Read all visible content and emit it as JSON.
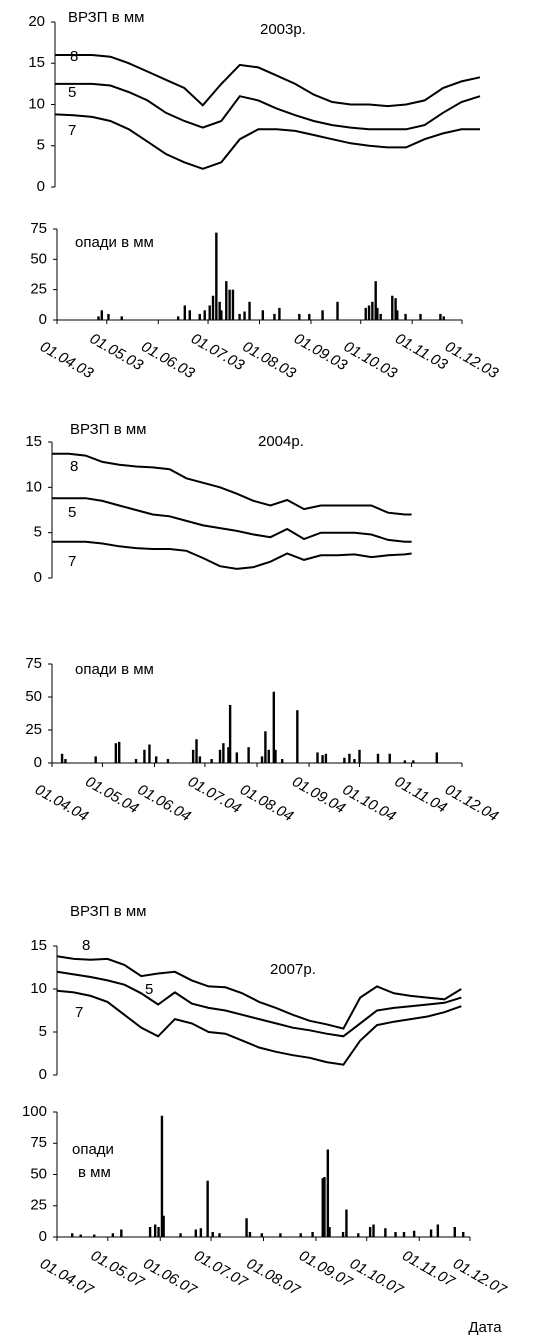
{
  "chart_data": [
    {
      "type": "line",
      "title": "2003р.",
      "ylabel": "ВРЗП в мм",
      "xlim": [
        0,
        230
      ],
      "ylim": [
        0,
        20
      ],
      "yticks": [
        0,
        5,
        10,
        15,
        20
      ],
      "x": [
        0,
        10,
        20,
        30,
        40,
        50,
        60,
        70,
        80,
        90,
        100,
        110,
        120,
        130,
        140,
        150,
        160,
        170,
        180,
        190,
        200,
        210,
        220,
        230
      ],
      "series": [
        {
          "name": "8",
          "color": "#000000",
          "values": [
            16,
            16,
            16,
            15.8,
            15,
            14,
            13,
            12,
            9.9,
            12.5,
            14.8,
            14.5,
            13.5,
            12.5,
            11.2,
            10.3,
            10,
            10,
            9.8,
            10,
            10.5,
            12,
            12.8,
            13.3
          ]
        },
        {
          "name": "5",
          "color": "#000000",
          "values": [
            12.5,
            12.5,
            12.5,
            12.3,
            11.5,
            10.5,
            9,
            8,
            7.2,
            8,
            11,
            10.5,
            9.5,
            8.7,
            8,
            7.5,
            7.2,
            7,
            7,
            7,
            7.5,
            9,
            10.3,
            11
          ]
        },
        {
          "name": "7",
          "color": "#000000",
          "values": [
            8.8,
            8.7,
            8.5,
            8,
            7,
            5.5,
            4,
            3,
            2.2,
            3,
            5.8,
            7,
            7,
            6.8,
            6.3,
            5.8,
            5.3,
            5,
            4.8,
            4.8,
            5.8,
            6.5,
            7,
            7
          ]
        }
      ]
    },
    {
      "type": "bar",
      "title": "опади в мм",
      "color": "#000000",
      "xlim": [
        0,
        244
      ],
      "ylim": [
        0,
        75
      ],
      "yticks": [
        0,
        25,
        50,
        75
      ],
      "xticks": [
        {
          "value": 0,
          "label": "01.04.03"
        },
        {
          "value": 30,
          "label": "01.05.03"
        },
        {
          "value": 61,
          "label": "01.06.03"
        },
        {
          "value": 91,
          "label": "01.07.03"
        },
        {
          "value": 122,
          "label": "01.08.03"
        },
        {
          "value": 153,
          "label": "01.09.03"
        },
        {
          "value": 183,
          "label": "01.10.03"
        },
        {
          "value": 214,
          "label": "01.11.03"
        },
        {
          "value": 244,
          "label": "01.12.03"
        }
      ],
      "x": [
        25,
        27,
        31,
        39,
        73,
        77,
        80,
        86,
        89,
        92,
        94,
        96,
        98,
        99,
        102,
        104,
        106,
        110,
        113,
        116,
        124,
        131,
        134,
        146,
        152,
        160,
        169,
        186,
        188,
        190,
        192,
        193,
        195,
        202,
        204,
        205,
        210,
        219,
        231,
        233
      ],
      "values": [
        3,
        8,
        5,
        3,
        3,
        12,
        8,
        5,
        8,
        12,
        20,
        72,
        15,
        8,
        32,
        25,
        25,
        5,
        7,
        15,
        8,
        5,
        10,
        5,
        5,
        8,
        15,
        10,
        12,
        15,
        32,
        10,
        5,
        20,
        18,
        8,
        5,
        5,
        5,
        3
      ]
    },
    {
      "type": "line",
      "title": "2004р.",
      "ylabel": "ВРЗП в мм",
      "xlim": [
        0,
        244
      ],
      "ylim": [
        0,
        15
      ],
      "yticks": [
        0,
        5,
        10,
        15
      ],
      "x": [
        0,
        10,
        20,
        30,
        40,
        50,
        60,
        70,
        80,
        90,
        100,
        110,
        120,
        130,
        140,
        150,
        160,
        170,
        180,
        190,
        200,
        210,
        214
      ],
      "series": [
        {
          "name": "8",
          "color": "#000000",
          "values": [
            13.7,
            13.7,
            13.5,
            12.8,
            12.5,
            12.3,
            12.2,
            12,
            11,
            10.5,
            10,
            9.3,
            8.5,
            8,
            8.6,
            7.6,
            8,
            8,
            8,
            8,
            7.2,
            7,
            7
          ]
        },
        {
          "name": "5",
          "color": "#000000",
          "values": [
            8.8,
            8.8,
            8.8,
            8.5,
            8,
            7.5,
            7,
            6.8,
            6.3,
            5.8,
            5.5,
            5.2,
            4.8,
            4.5,
            5.4,
            4.3,
            5,
            5,
            5,
            4.8,
            4.2,
            4,
            4
          ]
        },
        {
          "name": "7",
          "color": "#000000",
          "values": [
            4,
            4,
            4,
            3.8,
            3.5,
            3.3,
            3.2,
            3.2,
            3,
            2.2,
            1.3,
            1,
            1.2,
            1.8,
            2.7,
            2,
            2.5,
            2.5,
            2.6,
            2.3,
            2.5,
            2.6,
            2.7
          ]
        }
      ]
    },
    {
      "type": "bar",
      "title": "опади в мм",
      "color": "#000000",
      "xlim": [
        0,
        244
      ],
      "ylim": [
        0,
        75
      ],
      "yticks": [
        0,
        25,
        50,
        75
      ],
      "xticks": [
        {
          "value": 0,
          "label": "01.04.04"
        },
        {
          "value": 30,
          "label": "01.05.04"
        },
        {
          "value": 61,
          "label": "01.06.04"
        },
        {
          "value": 91,
          "label": "01.07.04"
        },
        {
          "value": 122,
          "label": "01.08.04"
        },
        {
          "value": 153,
          "label": "01.09.04"
        },
        {
          "value": 183,
          "label": "01.10.04"
        },
        {
          "value": 214,
          "label": "01.11.04"
        },
        {
          "value": 244,
          "label": "01.12.04"
        }
      ],
      "x": [
        6,
        8,
        26,
        38,
        40,
        50,
        55,
        58,
        62,
        69,
        84,
        86,
        88,
        95,
        100,
        102,
        105,
        106,
        110,
        117,
        125,
        127,
        129,
        132,
        133,
        137,
        146,
        158,
        161,
        163,
        174,
        177,
        180,
        183,
        194,
        201,
        210,
        215,
        229
      ],
      "values": [
        7,
        3,
        5,
        15,
        16,
        3,
        10,
        14,
        5,
        3,
        10,
        18,
        5,
        3,
        10,
        15,
        12,
        44,
        8,
        12,
        5,
        24,
        10,
        54,
        10,
        3,
        40,
        8,
        6,
        7,
        4,
        7,
        3,
        10,
        7,
        7,
        2,
        2,
        8
      ]
    },
    {
      "type": "line",
      "title": "2007р.",
      "ylabel": "ВРЗП в мм",
      "xlim": [
        0,
        244
      ],
      "ylim": [
        0,
        15
      ],
      "yticks": [
        0,
        5,
        10,
        15
      ],
      "x": [
        0,
        10,
        20,
        30,
        40,
        50,
        60,
        70,
        80,
        90,
        100,
        110,
        120,
        130,
        140,
        150,
        160,
        170,
        180,
        190,
        200,
        210,
        220,
        230,
        240
      ],
      "series": [
        {
          "name": "8",
          "color": "#000000",
          "values": [
            13.8,
            13.5,
            13.4,
            13.5,
            12.8,
            11.5,
            11.8,
            12,
            11,
            10.3,
            10.2,
            9.5,
            8.5,
            7.8,
            7,
            6.3,
            5.9,
            5.4,
            9,
            10.3,
            9.5,
            9.2,
            9,
            8.8,
            10
          ]
        },
        {
          "name": "5",
          "color": "#000000",
          "values": [
            12,
            11.7,
            11.4,
            11,
            10.5,
            9.5,
            8.2,
            9.6,
            8.3,
            7.8,
            7.5,
            7,
            6.5,
            6,
            5.5,
            5.2,
            4.8,
            4.5,
            6,
            7.5,
            7.8,
            8,
            8.2,
            8.4,
            9
          ]
        },
        {
          "name": "7",
          "color": "#000000",
          "values": [
            9.8,
            9.6,
            9.2,
            8.5,
            7,
            5.5,
            4.5,
            6.5,
            6,
            5,
            4.8,
            4,
            3.2,
            2.7,
            2.3,
            2,
            1.5,
            1.2,
            4,
            5.8,
            6.2,
            6.5,
            6.8,
            7.3,
            8
          ]
        }
      ]
    },
    {
      "type": "bar",
      "title": [
        "опади",
        "в мм"
      ],
      "xlabel": "Дата",
      "color": "#000000",
      "xlim": [
        0,
        244
      ],
      "ylim": [
        0,
        100
      ],
      "yticks": [
        0,
        25,
        50,
        75,
        100
      ],
      "xticks": [
        {
          "value": 0,
          "label": "01.04.07"
        },
        {
          "value": 30,
          "label": "01.05.07"
        },
        {
          "value": 61,
          "label": "01.06.07"
        },
        {
          "value": 91,
          "label": "01.07.07"
        },
        {
          "value": 122,
          "label": "01.08.07"
        },
        {
          "value": 153,
          "label": "01.09.07"
        },
        {
          "value": 183,
          "label": "01.10.07"
        },
        {
          "value": 214,
          "label": "01.11.07"
        },
        {
          "value": 244,
          "label": "01.12.07"
        }
      ],
      "x": [
        9,
        14,
        22,
        33,
        38,
        55,
        58,
        60,
        62,
        63,
        73,
        82,
        85,
        89,
        92,
        96,
        112,
        114,
        121,
        132,
        144,
        151,
        157,
        158,
        160,
        161,
        169,
        171,
        178,
        185,
        187,
        194,
        200,
        205,
        211,
        221,
        225,
        235,
        240
      ],
      "values": [
        3,
        2,
        2,
        3,
        6,
        8,
        10,
        8,
        97,
        17,
        3,
        6,
        7,
        45,
        4,
        3,
        15,
        4,
        3,
        3,
        3,
        4,
        47,
        48,
        70,
        8,
        4,
        22,
        3,
        8,
        10,
        7,
        4,
        4,
        5,
        6,
        10,
        8,
        4
      ]
    }
  ]
}
